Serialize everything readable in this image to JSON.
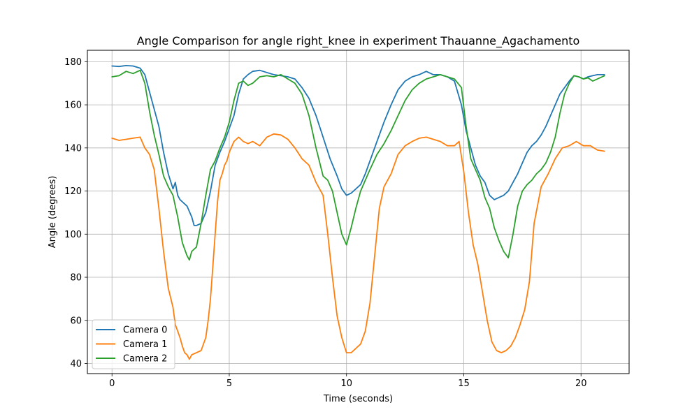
{
  "chart_data": {
    "type": "line",
    "title": "Angle Comparison for angle right_knee in experiment Thauanne_Agachamento",
    "xlabel": "Time (seconds)",
    "ylabel": "Angle (degrees)",
    "xlim": [
      -1.05,
      22.05
    ],
    "ylim": [
      35.3,
      185.3
    ],
    "xticks": [
      0,
      5,
      10,
      15,
      20
    ],
    "yticks": [
      40,
      60,
      80,
      100,
      120,
      140,
      160,
      180
    ],
    "grid": true,
    "legend_position": "lower-left",
    "series": [
      {
        "name": "Camera 0",
        "color": "#1f77b4",
        "x": [
          0,
          0.3,
          0.6,
          0.9,
          1.2,
          1.4,
          1.6,
          1.8,
          2.0,
          2.2,
          2.4,
          2.6,
          2.7,
          2.8,
          2.9,
          3.0,
          3.2,
          3.4,
          3.5,
          3.6,
          3.8,
          4.0,
          4.2,
          4.4,
          4.6,
          4.8,
          5.0,
          5.2,
          5.4,
          5.6,
          5.8,
          6.0,
          6.3,
          6.6,
          6.9,
          7.2,
          7.5,
          7.8,
          8.1,
          8.4,
          8.7,
          9.0,
          9.3,
          9.6,
          9.8,
          10.0,
          10.2,
          10.4,
          10.6,
          10.8,
          11.0,
          11.3,
          11.6,
          11.9,
          12.2,
          12.5,
          12.8,
          13.1,
          13.4,
          13.7,
          14.0,
          14.3,
          14.6,
          14.9,
          15.1,
          15.3,
          15.5,
          15.7,
          15.9,
          16.1,
          16.3,
          16.5,
          16.7,
          16.9,
          17.1,
          17.3,
          17.5,
          17.7,
          17.9,
          18.1,
          18.3,
          18.5,
          18.7,
          18.9,
          19.1,
          19.3,
          19.5,
          19.7,
          19.9,
          20.1,
          20.3,
          20.5,
          20.7,
          21.0
        ],
        "y": [
          178,
          177.8,
          178.2,
          178,
          177,
          174,
          166,
          158,
          150,
          138,
          128,
          121,
          124,
          118,
          116,
          115,
          113,
          108,
          104,
          104,
          105,
          110,
          120,
          132,
          138,
          143,
          149,
          155,
          165,
          172,
          174,
          175.5,
          176,
          175,
          174,
          173.5,
          173,
          172,
          168,
          163,
          155,
          145,
          135,
          127,
          121,
          118,
          119,
          121,
          123,
          128,
          134,
          143,
          152,
          160,
          167,
          171,
          173,
          174,
          175.5,
          174,
          174,
          173,
          171,
          160,
          148,
          140,
          132,
          127,
          124,
          118,
          116,
          117,
          118,
          120,
          124,
          128,
          133,
          138,
          141,
          143,
          146,
          150,
          155,
          160,
          165,
          168,
          171,
          173.5,
          173,
          172,
          173,
          173.5,
          174,
          174
        ]
      },
      {
        "name": "Camera 1",
        "color": "#ff7f0e",
        "x": [
          0,
          0.3,
          0.6,
          0.9,
          1.2,
          1.4,
          1.6,
          1.8,
          2.0,
          2.2,
          2.4,
          2.6,
          2.7,
          2.8,
          2.9,
          3.0,
          3.1,
          3.2,
          3.3,
          3.4,
          3.6,
          3.8,
          4.0,
          4.1,
          4.2,
          4.3,
          4.4,
          4.5,
          4.6,
          4.7,
          4.8,
          4.9,
          5.0,
          5.2,
          5.4,
          5.6,
          5.8,
          6.0,
          6.3,
          6.6,
          6.9,
          7.2,
          7.5,
          7.8,
          8.1,
          8.4,
          8.7,
          9.0,
          9.2,
          9.4,
          9.6,
          9.8,
          10.0,
          10.2,
          10.4,
          10.6,
          10.8,
          11.0,
          11.2,
          11.4,
          11.6,
          11.9,
          12.2,
          12.5,
          12.8,
          13.1,
          13.4,
          13.7,
          14.0,
          14.3,
          14.6,
          14.8,
          15.0,
          15.2,
          15.4,
          15.6,
          15.8,
          16.0,
          16.2,
          16.4,
          16.6,
          16.8,
          17.0,
          17.2,
          17.4,
          17.6,
          17.8,
          18.0,
          18.3,
          18.6,
          18.9,
          19.2,
          19.5,
          19.8,
          20.1,
          20.4,
          20.7,
          21.0
        ],
        "y": [
          144.5,
          143.5,
          144,
          144.5,
          145,
          140,
          137,
          130,
          112,
          92,
          75,
          66,
          58,
          55,
          52,
          48,
          45,
          44,
          42,
          44,
          45,
          46,
          52,
          60,
          70,
          85,
          100,
          115,
          125,
          128,
          132,
          134,
          138,
          143,
          145,
          143,
          142,
          143,
          141,
          145,
          146.5,
          146,
          144,
          140,
          135,
          132,
          124,
          118,
          100,
          80,
          62,
          52,
          45,
          45,
          47,
          49,
          55,
          68,
          90,
          112,
          122,
          128,
          137,
          141,
          143,
          144.5,
          145,
          144,
          143,
          141,
          141,
          143,
          129,
          110,
          95,
          86,
          73,
          60,
          50,
          46,
          45,
          46,
          48,
          52,
          58,
          65,
          78,
          105,
          122,
          128,
          135,
          140,
          141,
          143,
          141,
          141,
          139,
          138.5
        ]
      },
      {
        "name": "Camera 2",
        "color": "#2ca02c",
        "x": [
          0,
          0.3,
          0.6,
          0.9,
          1.2,
          1.4,
          1.6,
          1.8,
          2.0,
          2.2,
          2.4,
          2.6,
          2.7,
          2.8,
          2.9,
          3.0,
          3.1,
          3.2,
          3.3,
          3.4,
          3.6,
          3.8,
          4.0,
          4.2,
          4.4,
          4.6,
          4.8,
          5.0,
          5.2,
          5.4,
          5.6,
          5.8,
          6.0,
          6.3,
          6.6,
          6.9,
          7.2,
          7.5,
          7.8,
          8.1,
          8.4,
          8.7,
          9.0,
          9.2,
          9.4,
          9.6,
          9.8,
          10.0,
          10.2,
          10.4,
          10.6,
          10.8,
          11.0,
          11.3,
          11.6,
          11.9,
          12.2,
          12.5,
          12.8,
          13.1,
          13.4,
          13.7,
          14.0,
          14.3,
          14.6,
          14.9,
          15.1,
          15.3,
          15.5,
          15.7,
          15.9,
          16.1,
          16.3,
          16.5,
          16.7,
          16.9,
          17.1,
          17.3,
          17.5,
          17.7,
          17.9,
          18.1,
          18.3,
          18.5,
          18.7,
          18.9,
          19.1,
          19.3,
          19.5,
          19.7,
          19.9,
          20.1,
          20.3,
          20.5,
          20.7,
          21.0
        ],
        "y": [
          173,
          173.5,
          175.5,
          174.5,
          176,
          170,
          157,
          146,
          137,
          127,
          122,
          118,
          113,
          108,
          102,
          96,
          93,
          90,
          88,
          92,
          94,
          105,
          118,
          130,
          134,
          140,
          145,
          152,
          162,
          170,
          171,
          169,
          170,
          173,
          173.5,
          173,
          174,
          172,
          170,
          165,
          155,
          140,
          127,
          125,
          120,
          110,
          100,
          95,
          103,
          112,
          120,
          125,
          130,
          137,
          142,
          148,
          155,
          162,
          167,
          170,
          172,
          173,
          174,
          173,
          172,
          168,
          150,
          135,
          130,
          125,
          117,
          112,
          103,
          97,
          92,
          89,
          100,
          113,
          120,
          123,
          125,
          128,
          130,
          133,
          138,
          145,
          156,
          165,
          170,
          173.5,
          173,
          172,
          172.5,
          171,
          172,
          173.5
        ]
      }
    ]
  }
}
